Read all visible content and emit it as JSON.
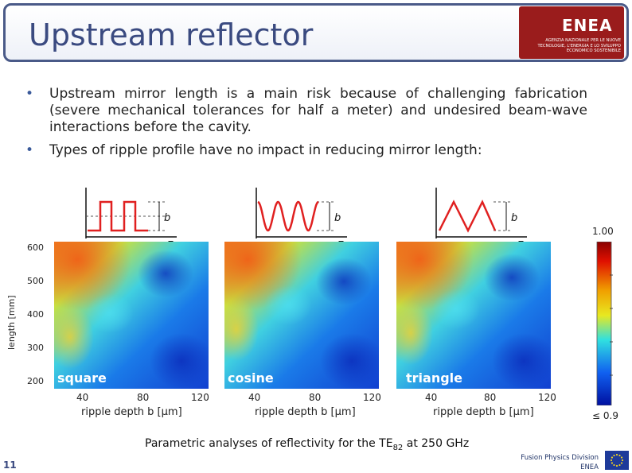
{
  "slide": {
    "title": "Upstream reflector",
    "number": "11"
  },
  "logo": {
    "word": "ENEA",
    "subtitle": "AGENZIA NAZIONALE PER LE NUOVE TECNOLOGIE, L'ENERGIA E LO SVILUPPO ECONOMICO SOSTENIBILE"
  },
  "bullets": [
    "Upstream mirror length is a main risk because of challenging fabrication (severe mechanical tolerances for half a meter) and undesired beam-wave interactions before the cavity.",
    "Types of ripple profile have no impact in reducing mirror length:"
  ],
  "bullet_glyph": "•",
  "inset": {
    "b": "b",
    "z": "z"
  },
  "axes": {
    "ylabel": "length [mm]",
    "yticks": [
      "600",
      "500",
      "400",
      "300",
      "200"
    ],
    "xticks": [
      "40",
      "80",
      "120"
    ],
    "xlabel": "ripple depth b [μm]"
  },
  "plots": [
    {
      "label": "square"
    },
    {
      "label": "cosine"
    },
    {
      "label": "triangle"
    }
  ],
  "colorbar": {
    "max_label": "1.00",
    "min_label": "≤ 0.9"
  },
  "caption": {
    "prefix": "Parametric analyses of reflectivity for the TE",
    "subscript": "82",
    "suffix": " at 250 GHz"
  },
  "footer": {
    "line1": "Fusion Physics Division",
    "line2": "ENEA"
  },
  "colors": {
    "title": "#3a4a80",
    "profile_line": "#e02020",
    "axis": "#111111"
  }
}
